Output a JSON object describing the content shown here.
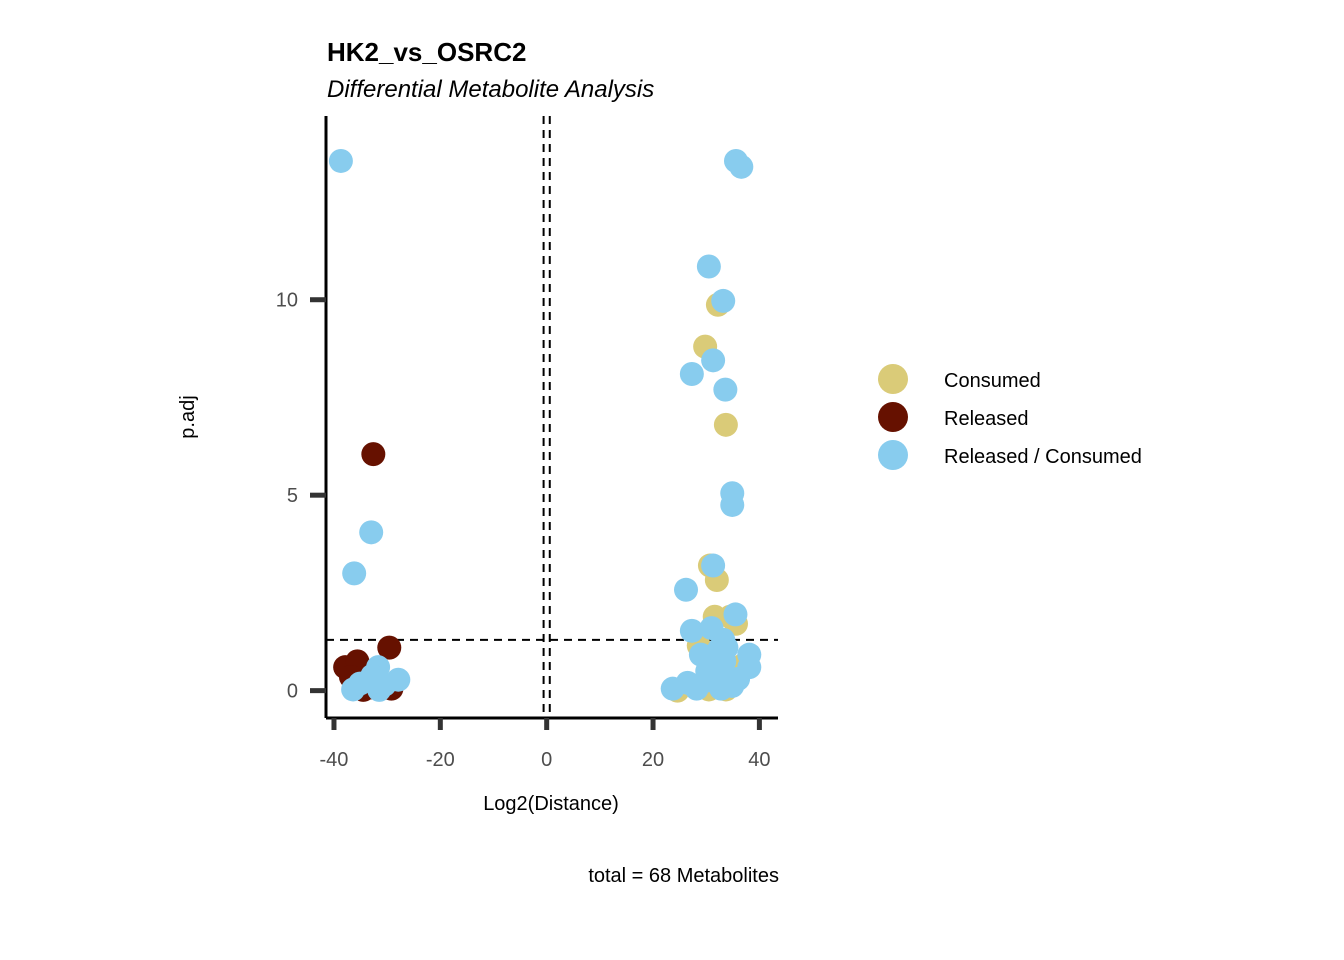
{
  "chart_data": {
    "type": "scatter",
    "title": "HK2_vs_OSRC2",
    "subtitle": "Differential Metabolite Analysis",
    "xlabel": "Log2(Distance)",
    "ylabel": "p.adj",
    "caption": "total = 68 Metabolites",
    "xlim": [
      -41.5,
      43.5
    ],
    "ylim": [
      -0.7,
      14.7
    ],
    "xticks": [
      -40,
      -20,
      0,
      20,
      40
    ],
    "xtick_labels": [
      "-40",
      "-20",
      "0",
      "20",
      "40"
    ],
    "yticks": [
      0,
      5,
      10
    ],
    "ytick_labels": [
      "0",
      "5",
      "10"
    ],
    "grid": false,
    "reference_lines": {
      "vertical": [
        -0.58,
        0.58
      ],
      "horizontal": [
        1.3
      ]
    },
    "legend": {
      "placement": "right",
      "entries": [
        {
          "name": "Consumed",
          "color": "#DACB78"
        },
        {
          "name": "Released",
          "color": "#661100"
        },
        {
          "name": "Released / Consumed",
          "color": "#88CCEE"
        }
      ]
    },
    "series": [
      {
        "name": "Consumed",
        "color": "#DACB78",
        "points": [
          [
            32.2,
            9.87
          ],
          [
            29.8,
            8.8
          ],
          [
            33.7,
            6.8
          ],
          [
            30.7,
            3.2
          ],
          [
            32.0,
            2.83
          ],
          [
            31.6,
            1.89
          ],
          [
            34.5,
            1.89
          ],
          [
            35.6,
            1.71
          ],
          [
            28.6,
            1.15
          ],
          [
            36.8,
            0.64
          ],
          [
            24.6,
            0.0
          ],
          [
            30.5,
            0.03
          ],
          [
            33.7,
            0.03
          ],
          [
            31.8,
            0.18
          ],
          [
            29.5,
            0.1
          ],
          [
            34.0,
            0.4
          ]
        ]
      },
      {
        "name": "Released",
        "color": "#661100",
        "points": [
          [
            -32.6,
            6.05
          ],
          [
            -29.6,
            1.1
          ],
          [
            -37.9,
            0.6
          ],
          [
            -35.6,
            0.75
          ],
          [
            -29.2,
            0.05
          ],
          [
            -34.5,
            0.02
          ],
          [
            -33.2,
            0.08
          ],
          [
            -33.9,
            0.28
          ],
          [
            -35.0,
            0.1
          ],
          [
            -36.8,
            0.35
          ]
        ]
      },
      {
        "name": "Released / Consumed",
        "color": "#88CCEE",
        "points": [
          [
            -38.7,
            13.55
          ],
          [
            -33.0,
            4.05
          ],
          [
            -36.2,
            3.0
          ],
          [
            -31.7,
            0.6
          ],
          [
            -27.9,
            0.28
          ],
          [
            -32.8,
            0.38
          ],
          [
            -36.4,
            0.03
          ],
          [
            -31.5,
            0.02
          ],
          [
            -35.1,
            0.18
          ],
          [
            -30.5,
            0.15
          ],
          [
            35.6,
            13.55
          ],
          [
            36.6,
            13.4
          ],
          [
            30.5,
            10.85
          ],
          [
            33.2,
            9.97
          ],
          [
            31.3,
            8.45
          ],
          [
            27.3,
            8.1
          ],
          [
            33.6,
            7.7
          ],
          [
            34.9,
            5.05
          ],
          [
            34.9,
            4.75
          ],
          [
            31.3,
            3.2
          ],
          [
            26.2,
            2.58
          ],
          [
            35.5,
            1.95
          ],
          [
            27.3,
            1.53
          ],
          [
            33.2,
            1.3
          ],
          [
            29.0,
            0.92
          ],
          [
            33.0,
            0.92
          ],
          [
            38.1,
            0.92
          ],
          [
            38.1,
            0.6
          ],
          [
            33.2,
            0.48
          ],
          [
            23.7,
            0.05
          ],
          [
            28.2,
            0.05
          ],
          [
            32.8,
            0.05
          ],
          [
            34.9,
            0.12
          ],
          [
            31.7,
            0.33
          ],
          [
            32.4,
            1.05
          ],
          [
            33.4,
            0.75
          ],
          [
            30.2,
            0.5
          ],
          [
            36.0,
            0.3
          ],
          [
            26.5,
            0.2
          ],
          [
            31.0,
            1.6
          ],
          [
            33.8,
            1.1
          ],
          [
            29.8,
            0.25
          ]
        ]
      }
    ]
  }
}
